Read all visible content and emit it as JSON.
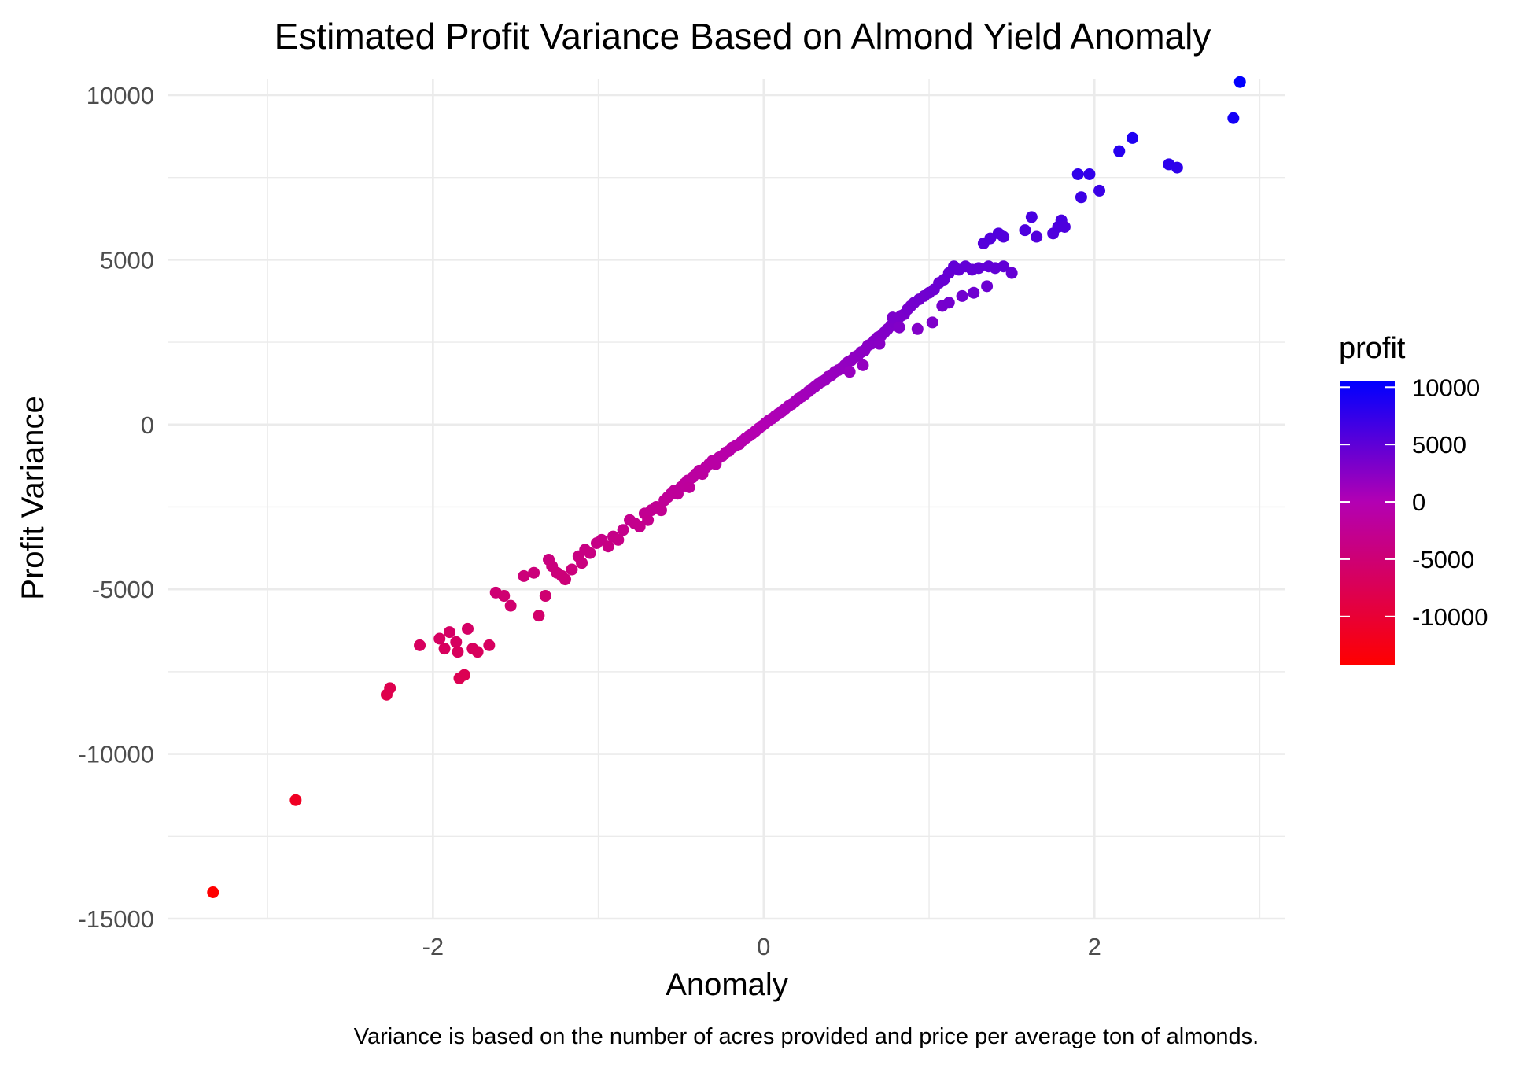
{
  "chart_data": {
    "type": "scatter",
    "title": "Estimated Profit Variance Based on Almond Yield Anomaly",
    "xlabel": "Anomaly",
    "ylabel": "Profit Variance",
    "caption": "Variance is based on the number of acres provided and price per average ton of almonds.",
    "xlim": [
      -3.6,
      3.15
    ],
    "ylim": [
      -15000,
      10500
    ],
    "x_ticks": [
      -2,
      0,
      2
    ],
    "x_tick_labels": [
      "-2",
      "0",
      "2"
    ],
    "y_ticks": [
      -15000,
      -10000,
      -5000,
      0,
      5000,
      10000
    ],
    "y_tick_labels": [
      "-15000",
      "-10000",
      "-5000",
      "0",
      "5000",
      "10000"
    ],
    "grid": true,
    "legend": {
      "title": "profit",
      "placement": "right",
      "type": "colorbar",
      "range": [
        -14200,
        10500
      ],
      "ticks": [
        10000,
        5000,
        0,
        -5000,
        -10000
      ],
      "tick_labels": [
        "10000",
        "5000",
        "0",
        "-5000",
        "-10000"
      ],
      "colors": {
        "low": "#ff0000",
        "mid": "#b300b3",
        "high": "#0000ff"
      }
    },
    "series": [
      {
        "color_by": "profit",
        "points": [
          [
            -3.33,
            -14200
          ],
          [
            -2.83,
            -11400
          ],
          [
            -2.28,
            -8200
          ],
          [
            -2.26,
            -8000
          ],
          [
            -2.08,
            -6700
          ],
          [
            -1.96,
            -6500
          ],
          [
            -1.93,
            -6800
          ],
          [
            -1.9,
            -6300
          ],
          [
            -1.86,
            -6600
          ],
          [
            -1.85,
            -6900
          ],
          [
            -1.79,
            -6200
          ],
          [
            -1.76,
            -6800
          ],
          [
            -1.73,
            -6900
          ],
          [
            -1.66,
            -6700
          ],
          [
            -1.84,
            -7700
          ],
          [
            -1.81,
            -7600
          ],
          [
            -1.62,
            -5100
          ],
          [
            -1.57,
            -5200
          ],
          [
            -1.53,
            -5500
          ],
          [
            -1.45,
            -4600
          ],
          [
            -1.39,
            -4500
          ],
          [
            -1.36,
            -5800
          ],
          [
            -1.32,
            -5200
          ],
          [
            -1.3,
            -4100
          ],
          [
            -1.28,
            -4300
          ],
          [
            -1.25,
            -4500
          ],
          [
            -1.22,
            -4600
          ],
          [
            -1.2,
            -4700
          ],
          [
            -1.16,
            -4400
          ],
          [
            -1.12,
            -4000
          ],
          [
            -1.1,
            -4200
          ],
          [
            -1.08,
            -3800
          ],
          [
            -1.05,
            -3900
          ],
          [
            -1.01,
            -3600
          ],
          [
            -0.98,
            -3500
          ],
          [
            -0.94,
            -3700
          ],
          [
            -0.91,
            -3400
          ],
          [
            -0.88,
            -3500
          ],
          [
            -0.85,
            -3200
          ],
          [
            -0.81,
            -2900
          ],
          [
            -0.78,
            -3000
          ],
          [
            -0.75,
            -3100
          ],
          [
            -0.72,
            -2700
          ],
          [
            -0.7,
            -2900
          ],
          [
            -0.68,
            -2600
          ],
          [
            -0.65,
            -2500
          ],
          [
            -0.62,
            -2600
          ],
          [
            -0.6,
            -2300
          ],
          [
            -0.58,
            -2200
          ],
          [
            -0.56,
            -2100
          ],
          [
            -0.54,
            -2000
          ],
          [
            -0.52,
            -2100
          ],
          [
            -0.5,
            -1900
          ],
          [
            -0.48,
            -1800
          ],
          [
            -0.46,
            -1700
          ],
          [
            -0.45,
            -1900
          ],
          [
            -0.43,
            -1600
          ],
          [
            -0.41,
            -1500
          ],
          [
            -0.39,
            -1400
          ],
          [
            -0.37,
            -1500
          ],
          [
            -0.35,
            -1300
          ],
          [
            -0.33,
            -1200
          ],
          [
            -0.31,
            -1100
          ],
          [
            -0.29,
            -1200
          ],
          [
            -0.27,
            -1000
          ],
          [
            -0.25,
            -950
          ],
          [
            -0.23,
            -850
          ],
          [
            -0.21,
            -800
          ],
          [
            -0.19,
            -700
          ],
          [
            -0.17,
            -650
          ],
          [
            -0.15,
            -600
          ],
          [
            -0.13,
            -500
          ],
          [
            -0.11,
            -420
          ],
          [
            -0.09,
            -350
          ],
          [
            -0.07,
            -280
          ],
          [
            -0.05,
            -200
          ],
          [
            -0.03,
            -120
          ],
          [
            -0.01,
            -40
          ],
          [
            0.01,
            40
          ],
          [
            0.03,
            120
          ],
          [
            0.05,
            180
          ],
          [
            0.07,
            260
          ],
          [
            0.09,
            330
          ],
          [
            0.11,
            400
          ],
          [
            0.13,
            480
          ],
          [
            0.15,
            560
          ],
          [
            0.17,
            620
          ],
          [
            0.19,
            700
          ],
          [
            0.21,
            780
          ],
          [
            0.23,
            850
          ],
          [
            0.25,
            920
          ],
          [
            0.27,
            1000
          ],
          [
            0.29,
            1080
          ],
          [
            0.31,
            1150
          ],
          [
            0.33,
            1230
          ],
          [
            0.35,
            1300
          ],
          [
            0.37,
            1350
          ],
          [
            0.39,
            1450
          ],
          [
            0.41,
            1500
          ],
          [
            0.43,
            1600
          ],
          [
            0.45,
            1650
          ],
          [
            0.47,
            1700
          ],
          [
            0.49,
            1800
          ],
          [
            0.51,
            1900
          ],
          [
            0.53,
            1950
          ],
          [
            0.55,
            2050
          ],
          [
            0.57,
            2100
          ],
          [
            0.59,
            2200
          ],
          [
            0.61,
            2250
          ],
          [
            0.63,
            2400
          ],
          [
            0.65,
            2450
          ],
          [
            0.67,
            2550
          ],
          [
            0.69,
            2650
          ],
          [
            0.71,
            2700
          ],
          [
            0.73,
            2800
          ],
          [
            0.75,
            2900
          ],
          [
            0.77,
            3000
          ],
          [
            0.79,
            3100
          ],
          [
            0.81,
            3200
          ],
          [
            0.83,
            3300
          ],
          [
            0.85,
            3350
          ],
          [
            0.87,
            3500
          ],
          [
            0.89,
            3600
          ],
          [
            0.91,
            3700
          ],
          [
            0.94,
            3800
          ],
          [
            0.97,
            3900
          ],
          [
            1.0,
            4000
          ],
          [
            1.03,
            4100
          ],
          [
            1.06,
            4300
          ],
          [
            1.09,
            4400
          ],
          [
            1.12,
            4600
          ],
          [
            1.15,
            4800
          ],
          [
            1.18,
            4700
          ],
          [
            1.22,
            4800
          ],
          [
            1.26,
            4700
          ],
          [
            1.3,
            4750
          ],
          [
            1.36,
            4800
          ],
          [
            1.4,
            4750
          ],
          [
            1.45,
            4800
          ],
          [
            1.5,
            4600
          ],
          [
            0.7,
            2450
          ],
          [
            0.78,
            3250
          ],
          [
            0.93,
            2900
          ],
          [
            1.02,
            3100
          ],
          [
            1.08,
            3600
          ],
          [
            1.12,
            3700
          ],
          [
            1.2,
            3900
          ],
          [
            1.27,
            4000
          ],
          [
            1.35,
            4200
          ],
          [
            0.82,
            2950
          ],
          [
            0.6,
            1800
          ],
          [
            0.52,
            1600
          ],
          [
            1.33,
            5500
          ],
          [
            1.37,
            5650
          ],
          [
            1.42,
            5800
          ],
          [
            1.45,
            5700
          ],
          [
            1.58,
            5900
          ],
          [
            1.62,
            6300
          ],
          [
            1.65,
            5700
          ],
          [
            1.75,
            5800
          ],
          [
            1.78,
            6000
          ],
          [
            1.8,
            6200
          ],
          [
            1.82,
            6000
          ],
          [
            1.9,
            7600
          ],
          [
            1.92,
            6900
          ],
          [
            1.97,
            7600
          ],
          [
            2.03,
            7100
          ],
          [
            2.15,
            8300
          ],
          [
            2.23,
            8700
          ],
          [
            2.45,
            7900
          ],
          [
            2.5,
            7800
          ],
          [
            2.84,
            9300
          ],
          [
            2.88,
            10400
          ]
        ]
      }
    ]
  }
}
